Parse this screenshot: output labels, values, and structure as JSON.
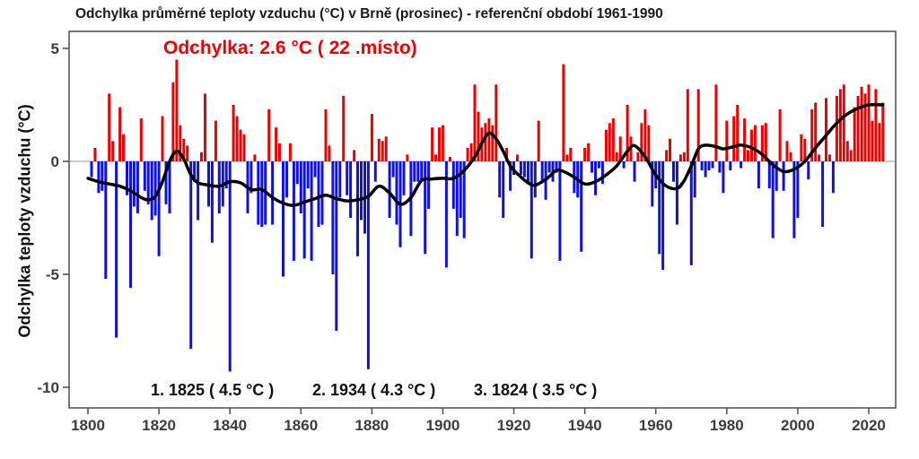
{
  "title": "Odchylka průměrné teploty vzduchu (°C) v Brně (prosinec) - referenční období 1961-1990",
  "annotation": {
    "current_deviation": "Odchylka: 2.6 °C  ( 22 .místo)",
    "color": "#ee0000"
  },
  "records": {
    "first": "1. 1825 ( 4.5 °C )",
    "second": "2. 1934 ( 4.3 °C )",
    "third": "3. 1824 ( 3.5 °C )"
  },
  "y_axis": {
    "label": "Odchylka teploty vzduchu (°C)",
    "ticks": [
      5,
      0,
      -5,
      -10
    ]
  },
  "x_axis": {
    "ticks": [
      1800,
      1820,
      1840,
      1860,
      1880,
      1900,
      1920,
      1940,
      1960,
      1980,
      2000,
      2020
    ]
  },
  "chart_data": {
    "type": "bar",
    "title": "Odchylka průměrné teploty vzduchu (°C) v Brně (prosinec) - referenční období 1961-1990",
    "xlabel": "",
    "ylabel": "Odchylka teploty vzduchu (°C)",
    "start_year": 1800,
    "end_year": 2024,
    "ylim": [
      -10.9,
      5.75
    ],
    "xlim": [
      1794.7,
      2027.6
    ],
    "grid": false,
    "colors": {
      "positive": "#ee0000",
      "negative": "#1111dd",
      "line": "#000000",
      "axis": "#4d4d4d",
      "zero_line": "#adadad",
      "tick_text": "#3d3d3d"
    },
    "values": [
      0.0,
      -0.7,
      0.6,
      -1.4,
      -1.3,
      -5.2,
      3.0,
      0.9,
      -7.8,
      2.4,
      1.2,
      -1.5,
      -5.6,
      -2.0,
      -2.3,
      1.9,
      -1.3,
      -1.9,
      -2.6,
      -2.4,
      -4.2,
      2.0,
      -1.9,
      -2.3,
      3.5,
      4.5,
      1.6,
      1.0,
      0.7,
      -8.3,
      -0.9,
      -2.6,
      0.4,
      3.0,
      -2.0,
      -3.6,
      1.8,
      -2.3,
      -2.0,
      -1.2,
      -9.3,
      2.5,
      2.0,
      1.4,
      1.2,
      -2.3,
      -1.4,
      0.3,
      -2.8,
      -2.9,
      -2.8,
      2.3,
      -2.8,
      1.5,
      0.8,
      -5.1,
      -1.6,
      0.8,
      -4.4,
      -1.0,
      -2.3,
      -4.3,
      -1.2,
      -4.4,
      -0.7,
      -2.9,
      -2.8,
      2.3,
      0.7,
      -5.0,
      -7.5,
      -1.6,
      2.9,
      -1.5,
      -2.5,
      0.5,
      -4.2,
      -2.6,
      -3.2,
      -9.2,
      2.1,
      -0.9,
      1.0,
      0.9,
      1.1,
      -2.5,
      -0.7,
      -2.8,
      -3.8,
      -1.5,
      0.3,
      -3.3,
      -0.9,
      -0.9,
      -0.9,
      -4.1,
      -2.1,
      1.5,
      0.3,
      1.5,
      1.6,
      -4.7,
      0.2,
      -2.1,
      -3.3,
      -2.5,
      -3.4,
      0.6,
      0.8,
      3.4,
      2.2,
      1.5,
      1.7,
      1.9,
      1.6,
      3.4,
      -1.6,
      -2.5,
      0.6,
      -1.3,
      -0.6,
      0.3,
      -0.6,
      -0.7,
      -0.9,
      -4.3,
      -1.6,
      1.8,
      -0.9,
      -1.7,
      -0.5,
      -0.9,
      -0.5,
      -4.4,
      4.3,
      0.3,
      0.6,
      -1.4,
      -1.6,
      -4.0,
      0.6,
      0.8,
      -0.5,
      -1.5,
      -0.3,
      -1.0,
      1.4,
      1.7,
      1.9,
      0.4,
      1.1,
      -0.3,
      2.5,
      1.1,
      -0.9,
      0.4,
      1.7,
      2.3,
      1.6,
      -2.0,
      -1.2,
      -4.1,
      -4.8,
      0.5,
      1.0,
      -0.9,
      -2.8,
      0.3,
      0.4,
      3.2,
      -4.6,
      -1.6,
      3.2,
      -0.4,
      -0.7,
      -0.4,
      -0.3,
      3.4,
      -0.5,
      -1.4,
      1.8,
      -0.4,
      2.0,
      2.5,
      -0.3,
      1.9,
      0.5,
      1.4,
      1.6,
      -1.2,
      1.6,
      1.7,
      -1.2,
      -3.4,
      -1.3,
      2.3,
      -1.3,
      0.9,
      0.4,
      -3.4,
      -2.5,
      1.2,
      1.0,
      -0.8,
      2.3,
      2.6,
      0.3,
      -2.9,
      2.8,
      0.3,
      -1.4,
      2.9,
      3.2,
      3.4,
      0.9,
      0.5,
      2.4,
      2.9,
      3.3,
      3.0,
      3.4,
      1.8,
      3.2,
      1.7,
      2.6
    ],
    "smoothed_line": {
      "description": "low-frequency smoothed anomaly curve",
      "points": [
        [
          1800,
          -0.75
        ],
        [
          1803,
          -0.9
        ],
        [
          1806,
          -1.0
        ],
        [
          1809,
          -1.1
        ],
        [
          1812,
          -1.3
        ],
        [
          1815,
          -1.6
        ],
        [
          1817,
          -1.7
        ],
        [
          1819,
          -1.55
        ],
        [
          1821,
          -0.9
        ],
        [
          1823,
          0.0
        ],
        [
          1825,
          0.45
        ],
        [
          1827,
          0.1
        ],
        [
          1829,
          -0.6
        ],
        [
          1831,
          -0.95
        ],
        [
          1834,
          -1.05
        ],
        [
          1837,
          -1.1
        ],
        [
          1840,
          -0.9
        ],
        [
          1843,
          -0.95
        ],
        [
          1846,
          -1.25
        ],
        [
          1849,
          -1.25
        ],
        [
          1852,
          -1.6
        ],
        [
          1855,
          -1.85
        ],
        [
          1858,
          -1.95
        ],
        [
          1861,
          -1.8
        ],
        [
          1864,
          -1.65
        ],
        [
          1867,
          -1.5
        ],
        [
          1870,
          -1.65
        ],
        [
          1873,
          -1.75
        ],
        [
          1876,
          -1.7
        ],
        [
          1879,
          -1.55
        ],
        [
          1882,
          -1.1
        ],
        [
          1885,
          -1.4
        ],
        [
          1888,
          -1.9
        ],
        [
          1891,
          -1.6
        ],
        [
          1894,
          -0.85
        ],
        [
          1897,
          -0.78
        ],
        [
          1900,
          -0.75
        ],
        [
          1903,
          -0.75
        ],
        [
          1906,
          -0.4
        ],
        [
          1909,
          0.2
        ],
        [
          1911,
          0.8
        ],
        [
          1913,
          1.25
        ],
        [
          1915,
          1.0
        ],
        [
          1917,
          0.45
        ],
        [
          1919,
          -0.2
        ],
        [
          1921,
          -0.55
        ],
        [
          1924,
          -0.95
        ],
        [
          1926,
          -1.05
        ],
        [
          1929,
          -0.8
        ],
        [
          1932,
          -0.4
        ],
        [
          1934,
          -0.45
        ],
        [
          1937,
          -0.7
        ],
        [
          1940,
          -1.0
        ],
        [
          1943,
          -0.9
        ],
        [
          1946,
          -0.6
        ],
        [
          1949,
          -0.2
        ],
        [
          1952,
          0.45
        ],
        [
          1954,
          0.7
        ],
        [
          1957,
          0.2
        ],
        [
          1960,
          -0.6
        ],
        [
          1963,
          -1.1
        ],
        [
          1966,
          -1.2
        ],
        [
          1968,
          -0.85
        ],
        [
          1970,
          -0.2
        ],
        [
          1972,
          0.55
        ],
        [
          1974,
          0.72
        ],
        [
          1977,
          0.65
        ],
        [
          1979,
          0.55
        ],
        [
          1982,
          0.65
        ],
        [
          1984,
          0.72
        ],
        [
          1987,
          0.6
        ],
        [
          1990,
          0.3
        ],
        [
          1993,
          -0.15
        ],
        [
          1996,
          -0.45
        ],
        [
          1999,
          -0.35
        ],
        [
          2002,
          0.0
        ],
        [
          2005,
          0.6
        ],
        [
          2008,
          1.15
        ],
        [
          2011,
          1.7
        ],
        [
          2014,
          2.1
        ],
        [
          2017,
          2.35
        ],
        [
          2020,
          2.5
        ],
        [
          2024,
          2.5
        ]
      ]
    }
  }
}
